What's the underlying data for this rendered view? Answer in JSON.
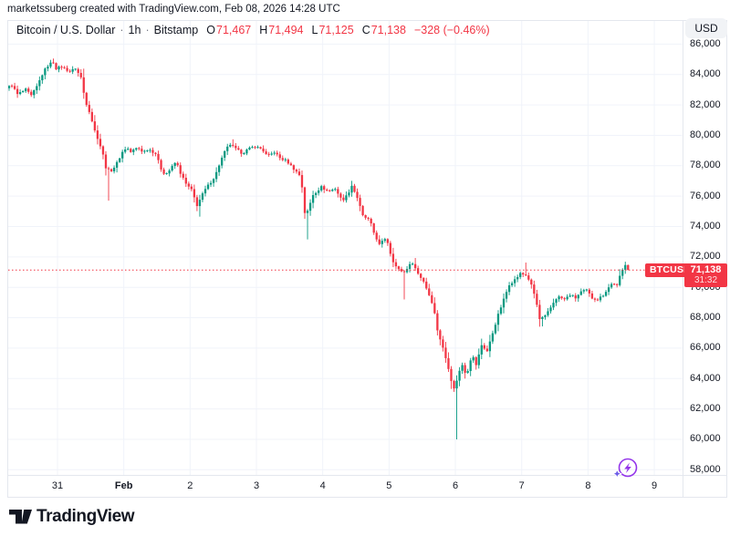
{
  "attribution": "marketssuberg created with TradingView.com, Feb 08, 2026 14:28 UTC",
  "header": {
    "symbol_title": "Bitcoin / U.S. Dollar",
    "separator": "·",
    "interval": "1h",
    "exchange": "Bitstamp",
    "ohlc": {
      "o_label": "O",
      "o_value": "71,467",
      "h_label": "H",
      "h_value": "71,494",
      "l_label": "L",
      "l_value": "71,125",
      "c_label": "C",
      "c_value": "71,138"
    },
    "change_text": "−328 (−0.46%)"
  },
  "currency_button_label": "USD",
  "price_label": {
    "symbol": "BTCUSD",
    "price": "71,138",
    "countdown": "31:32"
  },
  "logo_text": "TradingView",
  "icons": {
    "flash": "lightning-bolt-in-circle-with-sparkle",
    "logo_mark": "tradingview-tv-mark"
  },
  "colors": {
    "up": "#089981",
    "down": "#F23645",
    "grid": "#F0F3FA",
    "axis_text": "#131722",
    "price_line": "#F23645",
    "badge_bg": "#F23645",
    "purple_icon": "#9334EA",
    "purple_icon_spark": "#6C5CE7"
  },
  "chart_data": {
    "type": "candlestick",
    "title": "Bitcoin / U.S. Dollar",
    "symbol": "BTCUSD",
    "interval": "1h",
    "exchange": "Bitstamp",
    "legend_position": "top-left",
    "grid": true,
    "start_time": "Jan 30 06:00 UTC",
    "hours_total": 225,
    "price_line": 71138,
    "current_candle": {
      "open": 71467,
      "high": 71494,
      "low": 71125,
      "close": 71138,
      "change": -328,
      "change_pct": -0.46
    },
    "y_axis": {
      "min": 57500,
      "max": 86450,
      "tick_step": 2000,
      "ticks": [
        86000,
        84000,
        82000,
        80000,
        78000,
        76000,
        74000,
        72000,
        70000,
        68000,
        66000,
        64000,
        62000,
        60000,
        58000
      ]
    },
    "x_axis": {
      "ticks": [
        {
          "label": "31",
          "hour": 18,
          "bold": false
        },
        {
          "label": "Feb",
          "hour": 42,
          "bold": true
        },
        {
          "label": "2",
          "hour": 66,
          "bold": false
        },
        {
          "label": "3",
          "hour": 90,
          "bold": false
        },
        {
          "label": "4",
          "hour": 114,
          "bold": false
        },
        {
          "label": "5",
          "hour": 138,
          "bold": false
        },
        {
          "label": "6",
          "hour": 162,
          "bold": false
        },
        {
          "label": "7",
          "hour": 186,
          "bold": false
        },
        {
          "label": "8",
          "hour": 210,
          "bold": false
        },
        {
          "label": "9",
          "hour": 234,
          "bold": false
        }
      ]
    },
    "path": [
      [
        0,
        83100
      ],
      [
        2,
        83300
      ],
      [
        4,
        82700
      ],
      [
        7,
        83000
      ],
      [
        9,
        82600
      ],
      [
        11,
        83200
      ],
      [
        13.5,
        84200
      ],
      [
        15.5,
        84700
      ],
      [
        17,
        84800
      ],
      [
        18,
        84400
      ],
      [
        20,
        84500
      ],
      [
        23,
        84200
      ],
      [
        25,
        84400
      ],
      [
        27,
        83800
      ],
      [
        28.5,
        82300
      ],
      [
        30,
        81600
      ],
      [
        32,
        80300
      ],
      [
        33.5,
        79600
      ],
      [
        35,
        78700
      ],
      [
        36,
        77900
      ],
      [
        37.5,
        77600
      ],
      [
        39.5,
        78000
      ],
      [
        42,
        78900
      ],
      [
        43.5,
        79200
      ],
      [
        45,
        78900
      ],
      [
        47.5,
        79200
      ],
      [
        49.5,
        78900
      ],
      [
        51.5,
        79100
      ],
      [
        54,
        78800
      ],
      [
        56,
        77800
      ],
      [
        57.5,
        77400
      ],
      [
        59.5,
        77800
      ],
      [
        61.5,
        78300
      ],
      [
        62.5,
        77700
      ],
      [
        65,
        76800
      ],
      [
        67,
        76400
      ],
      [
        69,
        75400
      ],
      [
        71.5,
        76300
      ],
      [
        73,
        76700
      ],
      [
        75.5,
        77300
      ],
      [
        77.5,
        78300
      ],
      [
        79.5,
        79100
      ],
      [
        81,
        79400
      ],
      [
        83,
        79100
      ],
      [
        85.5,
        78800
      ],
      [
        87.5,
        79100
      ],
      [
        90,
        79250
      ],
      [
        92.5,
        79100
      ],
      [
        94.5,
        78600
      ],
      [
        97,
        78900
      ],
      [
        99,
        78500
      ],
      [
        101.5,
        78300
      ],
      [
        104,
        77800
      ],
      [
        106,
        77400
      ],
      [
        107,
        76600
      ],
      [
        107.8,
        74900
      ],
      [
        109,
        75000
      ],
      [
        111,
        76100
      ],
      [
        114,
        76600
      ],
      [
        116.5,
        76300
      ],
      [
        119,
        76500
      ],
      [
        121.5,
        75700
      ],
      [
        123.5,
        76100
      ],
      [
        125,
        76700
      ],
      [
        127,
        75900
      ],
      [
        129,
        74700
      ],
      [
        131.5,
        74400
      ],
      [
        133,
        73600
      ],
      [
        135,
        72800
      ],
      [
        137.5,
        73300
      ],
      [
        139.5,
        71900
      ],
      [
        141.5,
        71200
      ],
      [
        144,
        71000
      ],
      [
        145.5,
        71400
      ],
      [
        147,
        71600
      ],
      [
        149,
        70900
      ],
      [
        151,
        70400
      ],
      [
        153,
        69500
      ],
      [
        154.5,
        68800
      ],
      [
        156,
        67200
      ],
      [
        158,
        66000
      ],
      [
        160,
        64700
      ],
      [
        161.5,
        63500
      ],
      [
        162.3,
        63200
      ],
      [
        163.3,
        64200
      ],
      [
        165,
        64900
      ],
      [
        166.5,
        64200
      ],
      [
        168.5,
        65600
      ],
      [
        170,
        64900
      ],
      [
        172,
        66200
      ],
      [
        174,
        65800
      ],
      [
        176,
        67000
      ],
      [
        178,
        68200
      ],
      [
        180,
        69200
      ],
      [
        182,
        70200
      ],
      [
        184,
        70500
      ],
      [
        186,
        70900
      ],
      [
        188,
        70800
      ],
      [
        189.5,
        70400
      ],
      [
        191.5,
        69300
      ],
      [
        193,
        67900
      ],
      [
        195,
        68100
      ],
      [
        196.5,
        68500
      ],
      [
        198,
        69000
      ],
      [
        199.5,
        69400
      ],
      [
        202,
        69200
      ],
      [
        204,
        69500
      ],
      [
        206,
        69300
      ],
      [
        208,
        69700
      ],
      [
        210,
        69800
      ],
      [
        212,
        69300
      ],
      [
        214,
        69200
      ],
      [
        216,
        69500
      ],
      [
        218,
        70000
      ],
      [
        219.5,
        70300
      ],
      [
        221,
        70100
      ],
      [
        222,
        70700
      ],
      [
        223.5,
        71350
      ],
      [
        224,
        71467
      ],
      [
        225,
        71138
      ]
    ],
    "wicks": [
      [
        16,
        85050,
        "high"
      ],
      [
        36,
        75700,
        "low"
      ],
      [
        69,
        74650,
        "low"
      ],
      [
        81,
        79740,
        "high"
      ],
      [
        108,
        73150,
        "low"
      ],
      [
        143,
        69200,
        "low"
      ],
      [
        147,
        71930,
        "high"
      ],
      [
        162,
        60000,
        "low"
      ],
      [
        187,
        71630,
        "high"
      ],
      [
        193,
        67430,
        "low"
      ]
    ]
  }
}
